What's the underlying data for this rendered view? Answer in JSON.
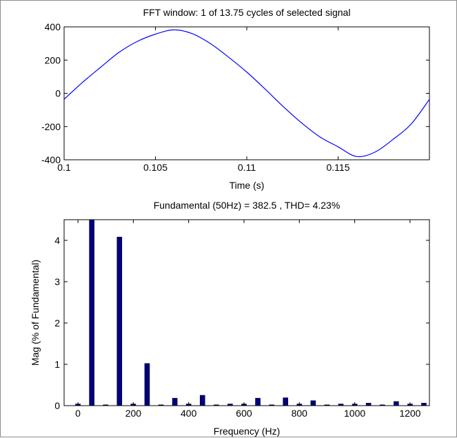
{
  "chart_data": [
    {
      "type": "line",
      "title": "FFT window: 1 of 13.75 cycles of selected signal",
      "xlabel": "Time (s)",
      "ylabel": "",
      "xlim": [
        0.1,
        0.12
      ],
      "ylim": [
        -400,
        400
      ],
      "xticks": [
        "0.1",
        "0.105",
        "0.11",
        "0.115"
      ],
      "xtick_values": [
        0.1,
        0.105,
        0.11,
        0.115
      ],
      "yticks": [
        "400",
        "200",
        "0",
        "-200",
        "-400"
      ],
      "ytick_values": [
        400,
        200,
        0,
        -200,
        -400
      ],
      "grid": false,
      "line_color": "#0000ff",
      "series": [
        {
          "x": [
            0.1,
            0.101,
            0.102,
            0.103,
            0.104,
            0.105,
            0.106,
            0.107,
            0.108,
            0.109,
            0.11,
            0.111,
            0.112,
            0.113,
            0.114,
            0.115,
            0.116,
            0.117,
            0.118,
            0.119,
            0.12
          ],
          "y": [
            -36,
            65,
            157,
            246,
            312,
            356,
            382,
            360,
            300,
            218,
            128,
            26,
            -80,
            -178,
            -262,
            -322,
            -380,
            -355,
            -278,
            -185,
            -36
          ]
        }
      ]
    },
    {
      "type": "bar",
      "title": "Fundamental (50Hz) = 382.5 , THD= 4.23%",
      "xlabel": "Frequency (Hz)",
      "ylabel": "Mag (% of Fundamental)",
      "xlim": [
        -50,
        1270
      ],
      "ylim": [
        0,
        4.5
      ],
      "xticks": [
        "0",
        "200",
        "400",
        "600",
        "800",
        "1000",
        "1200"
      ],
      "xtick_values": [
        0,
        200,
        400,
        600,
        800,
        1000,
        1200
      ],
      "yticks": [
        "4",
        "3",
        "2",
        "1",
        "0"
      ],
      "ytick_values": [
        4,
        3,
        2,
        1,
        0
      ],
      "grid": false,
      "bar_color": "#000080",
      "x": [
        0,
        50,
        100,
        150,
        200,
        250,
        300,
        350,
        400,
        450,
        500,
        550,
        600,
        650,
        700,
        750,
        800,
        850,
        900,
        950,
        1000,
        1050,
        1100,
        1150,
        1200,
        1250
      ],
      "values": [
        0.04,
        4.5,
        0.02,
        4.08,
        0.04,
        1.02,
        0.02,
        0.18,
        0.04,
        0.25,
        0.02,
        0.04,
        0.04,
        0.18,
        0.02,
        0.19,
        0.04,
        0.12,
        0.02,
        0.04,
        0.04,
        0.06,
        0.02,
        0.1,
        0.04,
        0.06
      ]
    }
  ]
}
